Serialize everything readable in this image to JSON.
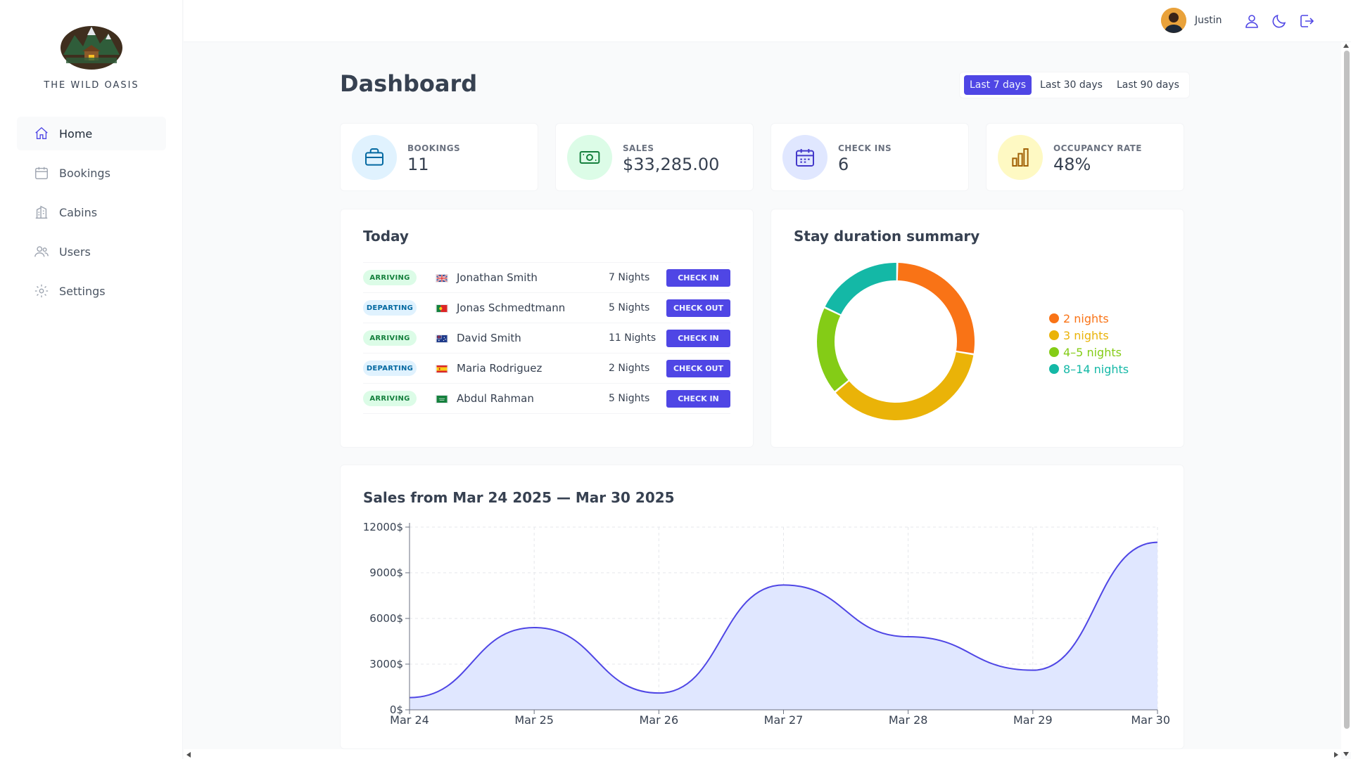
{
  "app": {
    "name": "THE WILD OASIS"
  },
  "sidebar": {
    "items": [
      {
        "label": "Home",
        "icon": "home-icon",
        "active": true
      },
      {
        "label": "Bookings",
        "icon": "calendar-icon",
        "active": false
      },
      {
        "label": "Cabins",
        "icon": "building-icon",
        "active": false
      },
      {
        "label": "Users",
        "icon": "users-icon",
        "active": false
      },
      {
        "label": "Settings",
        "icon": "gear-icon",
        "active": false
      }
    ]
  },
  "header": {
    "user_name": "Justin",
    "icons": [
      "user-icon",
      "moon-icon",
      "logout-icon"
    ]
  },
  "page": {
    "title": "Dashboard"
  },
  "filter": {
    "options": [
      "Last 7 days",
      "Last 30 days",
      "Last 90 days"
    ],
    "selected": "Last 7 days"
  },
  "stats": [
    {
      "label": "BOOKINGS",
      "value": "11",
      "icon": "briefcase-icon",
      "color": "#e0f2fe",
      "icon_color": "#0369a1"
    },
    {
      "label": "SALES",
      "value": "$33,285.00",
      "icon": "banknotes-icon",
      "color": "#dcfce7",
      "icon_color": "#15803d"
    },
    {
      "label": "CHECK INS",
      "value": "6",
      "icon": "calendar-days-icon",
      "color": "#e0e7ff",
      "icon_color": "#4338ca"
    },
    {
      "label": "OCCUPANCY RATE",
      "value": "48%",
      "icon": "chart-bar-icon",
      "color": "#fef9c3",
      "icon_color": "#a16207"
    }
  ],
  "today": {
    "title": "Today",
    "rows": [
      {
        "status": "ARRIVING",
        "type": "arriving",
        "flag": "gb",
        "guest": "Jonathan Smith",
        "nights": "7 Nights",
        "action": "CHECK IN"
      },
      {
        "status": "DEPARTING",
        "type": "departing",
        "flag": "pt",
        "guest": "Jonas Schmedtmann",
        "nights": "5 Nights",
        "action": "CHECK OUT"
      },
      {
        "status": "ARRIVING",
        "type": "arriving",
        "flag": "au",
        "guest": "David Smith",
        "nights": "11 Nights",
        "action": "CHECK IN"
      },
      {
        "status": "DEPARTING",
        "type": "departing",
        "flag": "es",
        "guest": "Maria Rodriguez",
        "nights": "2 Nights",
        "action": "CHECK OUT"
      },
      {
        "status": "ARRIVING",
        "type": "arriving",
        "flag": "sa",
        "guest": "Abdul Rahman",
        "nights": "5 Nights",
        "action": "CHECK IN"
      }
    ]
  },
  "chart_data": [
    {
      "type": "pie",
      "title": "Stay duration summary",
      "categories": [
        "2 nights",
        "3 nights",
        "4-5 nights",
        "8-14 nights"
      ],
      "legend_labels": [
        "2 nights",
        "3 nights",
        "4–5 nights",
        "8–14 nights"
      ],
      "values": [
        3,
        4,
        2,
        2
      ],
      "colors": [
        "#f97316",
        "#eab308",
        "#84cc16",
        "#14b8a6"
      ],
      "legend": "right"
    },
    {
      "type": "area",
      "title": "Sales from Mar 24 2025 — Mar 30 2025",
      "categories": [
        "Mar 24",
        "Mar 25",
        "Mar 26",
        "Mar 27",
        "Mar 28",
        "Mar 29",
        "Mar 30"
      ],
      "values": [
        800,
        5400,
        1100,
        8200,
        4800,
        2600,
        11000
      ],
      "ylim": [
        0,
        12000
      ],
      "yticks": [
        "0$",
        "3000$",
        "6000$",
        "9000$",
        "12000$"
      ],
      "ytick_values": [
        0,
        3000,
        6000,
        9000,
        12000
      ],
      "grid": true,
      "stroke": "#4f46e5",
      "fill": "#e0e7ff"
    }
  ]
}
